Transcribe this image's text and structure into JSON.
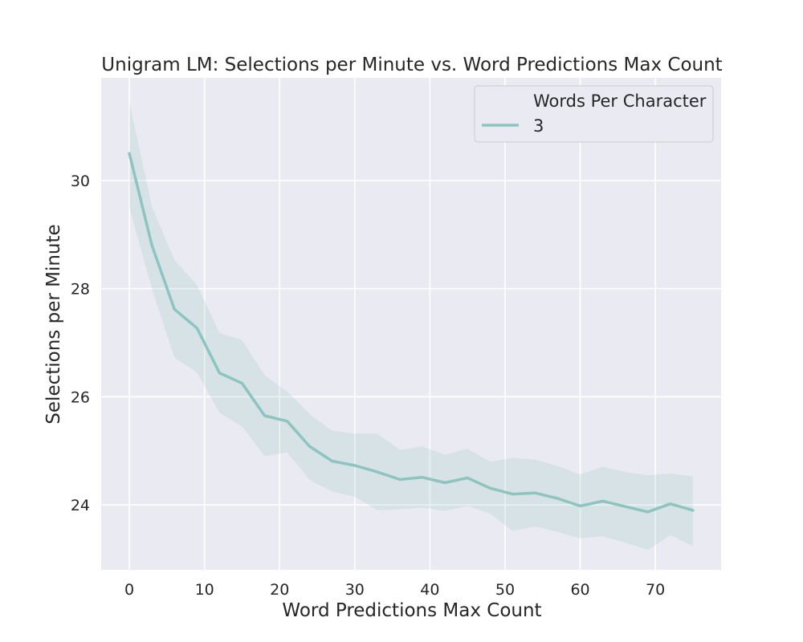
{
  "chart_data": {
    "type": "line",
    "title": "Unigram LM: Selections per Minute vs. Word Predictions Max Count",
    "xlabel": "Word Predictions Max Count",
    "ylabel": "Selections per Minute",
    "xlim": [
      -3.75,
      78.75
    ],
    "ylim": [
      22.8,
      31.9
    ],
    "xticks": [
      0,
      10,
      20,
      30,
      40,
      50,
      60,
      70
    ],
    "yticks": [
      24,
      26,
      28,
      30
    ],
    "grid": true,
    "legend": {
      "title": "Words Per Character",
      "placement": "top-right",
      "entries": [
        "3"
      ]
    },
    "colors": {
      "background": "#eaeaf2",
      "grid": "#ffffff",
      "line": "#8ec4c0",
      "band": "#8ec4c0"
    },
    "series": [
      {
        "name": "3",
        "x": [
          0,
          3,
          6,
          9,
          12,
          15,
          18,
          21,
          24,
          27,
          30,
          33,
          36,
          39,
          42,
          45,
          48,
          51,
          54,
          57,
          60,
          63,
          66,
          69,
          72,
          75
        ],
        "y": [
          30.5,
          28.8,
          27.62,
          27.27,
          26.44,
          26.25,
          25.65,
          25.55,
          25.08,
          24.81,
          24.73,
          24.61,
          24.47,
          24.51,
          24.41,
          24.5,
          24.31,
          24.2,
          24.22,
          24.12,
          23.98,
          24.07,
          23.97,
          23.87,
          24.02,
          23.9
        ],
        "y_lower": [
          29.5,
          28.0,
          26.72,
          26.45,
          25.7,
          25.45,
          24.9,
          24.97,
          24.46,
          24.25,
          24.15,
          23.9,
          23.92,
          23.95,
          23.89,
          23.98,
          23.84,
          23.52,
          23.6,
          23.5,
          23.38,
          23.42,
          23.3,
          23.17,
          23.44,
          23.24
        ],
        "y_upper": [
          31.45,
          29.52,
          28.53,
          28.07,
          27.18,
          27.05,
          26.4,
          26.1,
          25.68,
          25.37,
          25.32,
          25.32,
          25.02,
          25.08,
          24.93,
          25.04,
          24.8,
          24.87,
          24.84,
          24.72,
          24.56,
          24.71,
          24.61,
          24.55,
          24.58,
          24.53
        ]
      }
    ]
  }
}
